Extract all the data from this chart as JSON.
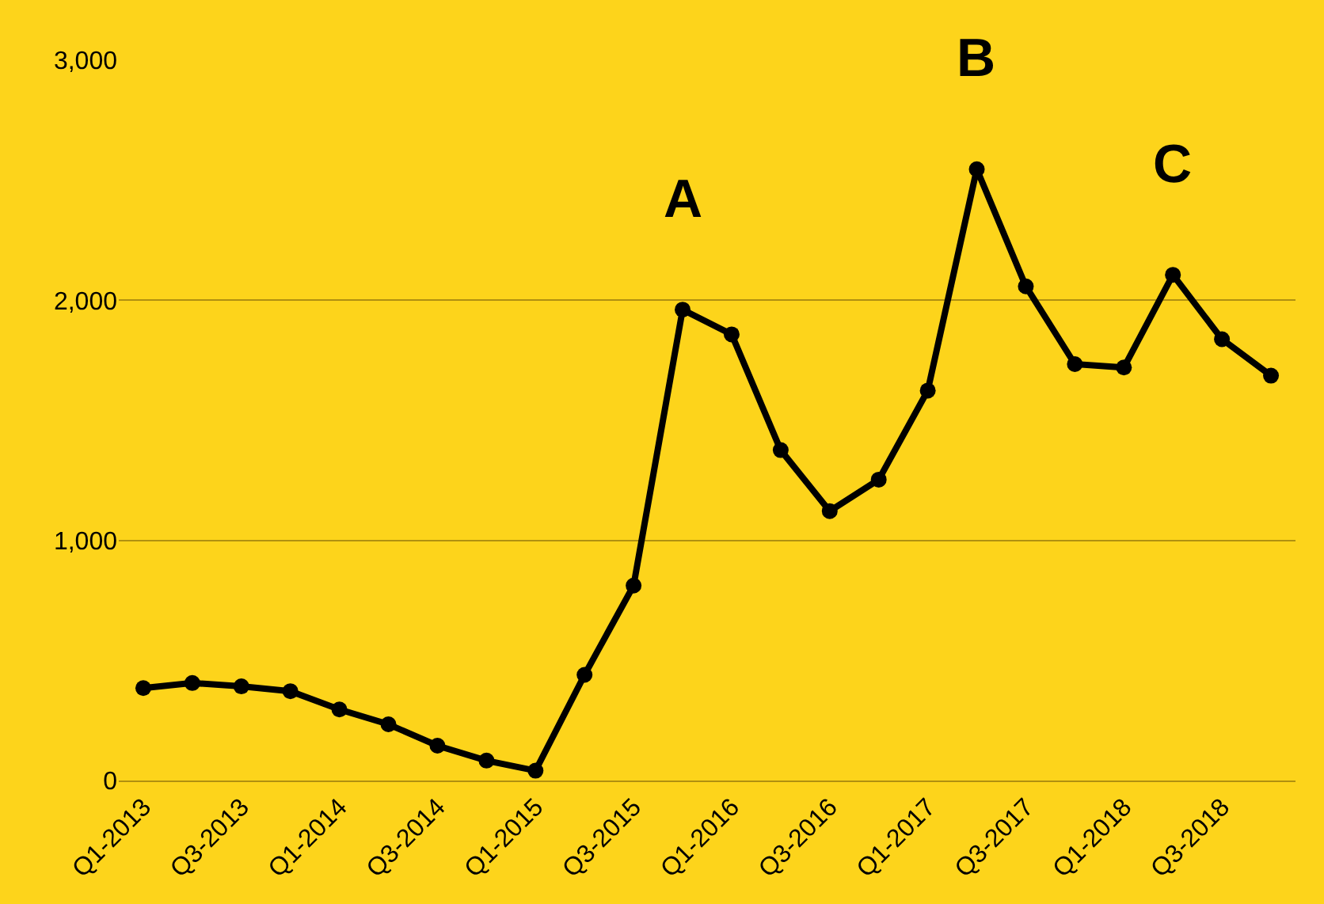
{
  "chart_data": {
    "type": "line",
    "categories": [
      "Q1-2013",
      null,
      "Q3-2013",
      null,
      "Q1-2014",
      null,
      "Q3-2014",
      null,
      "Q1-2015",
      null,
      "Q3-2015",
      null,
      "Q1-2016",
      null,
      "Q3-2016",
      null,
      "Q1-2017",
      null,
      "Q3-2017",
      null,
      "Q1-2018",
      null,
      "Q3-2018",
      null
    ],
    "series": [
      {
        "color": "#000000",
        "values": [
          385,
          406,
          392,
          372,
          296,
          234,
          145,
          83,
          41,
          440,
          812,
          1961,
          1858,
          1376,
          1122,
          1253,
          1624,
          2546,
          2058,
          1734,
          1720,
          2106,
          1838,
          1686
        ]
      }
    ],
    "ylim": [
      0,
      3000
    ],
    "yticks": [
      0,
      {
        "value": 1000,
        "label": "1,000"
      },
      {
        "value": 2000,
        "label": "2,000"
      },
      {
        "value": 3000,
        "label": "3,000"
      }
    ],
    "grid": "y",
    "marker": "circle",
    "line_style": "solid",
    "annotations": [
      "A",
      "B",
      "C"
    ]
  }
}
